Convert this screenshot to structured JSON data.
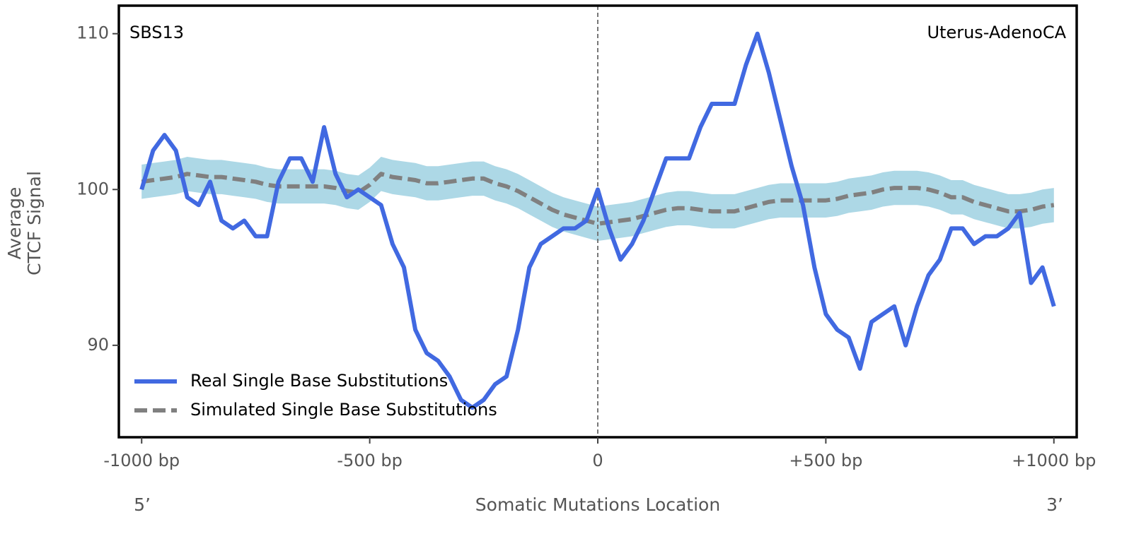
{
  "chart_data": {
    "type": "line",
    "title": "SBS13",
    "annotation": "Uterus-AdenoCA",
    "xlabel": "Somatic Mutations Location",
    "xlabel_left": "5’",
    "xlabel_right": "3’",
    "ylabel": [
      "Average",
      "CTCF Signal"
    ],
    "xlim": [
      -1050,
      1050
    ],
    "ylim": [
      84.1,
      111.8
    ],
    "xticks": [
      {
        "value": -1000,
        "label": "-1000 bp"
      },
      {
        "value": -500,
        "label": "-500 bp"
      },
      0,
      {
        "value": 500,
        "label": "+500 bp"
      },
      {
        "value": 1000,
        "label": "+1000 bp"
      }
    ],
    "yticks": [
      90,
      100,
      110
    ],
    "vline": 0,
    "legend": "lower left",
    "x": [
      -1000,
      -975,
      -950,
      -925,
      -900,
      -875,
      -850,
      -825,
      -800,
      -775,
      -750,
      -725,
      -700,
      -675,
      -650,
      -625,
      -600,
      -575,
      -550,
      -525,
      -500,
      -475,
      -450,
      -425,
      -400,
      -375,
      -350,
      -325,
      -300,
      -275,
      -250,
      -225,
      -200,
      -175,
      -150,
      -125,
      -100,
      -75,
      -50,
      -25,
      0,
      25,
      50,
      75,
      100,
      125,
      150,
      175,
      200,
      225,
      250,
      275,
      300,
      325,
      350,
      375,
      400,
      425,
      450,
      475,
      500,
      525,
      550,
      575,
      600,
      625,
      650,
      675,
      700,
      725,
      750,
      775,
      800,
      825,
      850,
      875,
      900,
      925,
      950,
      975,
      1000
    ],
    "band": {
      "color": "#add8e6",
      "upper": [
        101.6,
        101.7,
        101.8,
        101.9,
        102.1,
        102.0,
        101.9,
        101.9,
        101.8,
        101.7,
        101.6,
        101.4,
        101.3,
        101.3,
        101.3,
        101.3,
        101.3,
        101.2,
        101.0,
        100.9,
        101.4,
        102.1,
        101.9,
        101.8,
        101.7,
        101.5,
        101.5,
        101.6,
        101.7,
        101.8,
        101.8,
        101.5,
        101.3,
        101.0,
        100.6,
        100.2,
        99.8,
        99.5,
        99.3,
        99.1,
        98.9,
        99.0,
        99.1,
        99.2,
        99.4,
        99.6,
        99.8,
        99.9,
        99.9,
        99.8,
        99.7,
        99.7,
        99.7,
        99.9,
        100.1,
        100.3,
        100.4,
        100.4,
        100.4,
        100.4,
        100.4,
        100.5,
        100.7,
        100.8,
        100.9,
        101.1,
        101.2,
        101.2,
        101.2,
        101.1,
        100.9,
        100.6,
        100.6,
        100.3,
        100.1,
        99.9,
        99.7,
        99.7,
        99.8,
        100.0,
        100.1
      ],
      "lower": [
        99.4,
        99.5,
        99.6,
        99.7,
        99.9,
        99.8,
        99.7,
        99.7,
        99.6,
        99.5,
        99.4,
        99.2,
        99.1,
        99.1,
        99.1,
        99.1,
        99.1,
        99.0,
        98.8,
        98.7,
        99.2,
        99.9,
        99.7,
        99.6,
        99.5,
        99.3,
        99.3,
        99.4,
        99.5,
        99.6,
        99.6,
        99.3,
        99.1,
        98.8,
        98.4,
        98.0,
        97.6,
        97.3,
        97.1,
        96.9,
        96.7,
        96.8,
        96.9,
        97.0,
        97.2,
        97.4,
        97.6,
        97.7,
        97.7,
        97.6,
        97.5,
        97.5,
        97.5,
        97.7,
        97.9,
        98.1,
        98.2,
        98.2,
        98.2,
        98.2,
        98.2,
        98.3,
        98.5,
        98.6,
        98.7,
        98.9,
        99.0,
        99.0,
        99.0,
        98.9,
        98.7,
        98.4,
        98.4,
        98.1,
        97.9,
        97.7,
        97.5,
        97.5,
        97.6,
        97.8,
        97.9
      ]
    },
    "series": [
      {
        "name": "Real Single Base Substitutions",
        "color": "#4169e1",
        "dashed": false,
        "values": [
          100,
          102.5,
          103.5,
          102.5,
          99.5,
          99,
          100.5,
          98,
          97.5,
          98,
          97,
          97,
          100.5,
          102,
          102,
          100.5,
          104,
          101,
          99.5,
          100,
          99.5,
          99,
          96.5,
          95,
          91,
          89.5,
          89,
          88,
          86.5,
          86,
          86.5,
          87.5,
          88,
          91,
          95,
          96.5,
          97,
          97.5,
          97.5,
          98,
          100,
          97.5,
          95.5,
          96.5,
          98,
          100,
          102,
          102,
          102,
          104,
          105.5,
          105.5,
          105.5,
          108,
          110,
          107.5,
          104.5,
          101.5,
          99,
          95,
          92,
          91,
          90.5,
          88.5,
          91.5,
          92,
          92.5,
          90,
          92.5,
          94.5,
          95.5,
          97.5,
          97.5,
          96.5,
          97,
          97,
          97.5,
          98.5,
          94,
          95,
          92.5
        ]
      },
      {
        "name": "Simulated Single Base Substitutions",
        "color": "#808080",
        "dashed": true,
        "values": [
          100.5,
          100.6,
          100.7,
          100.8,
          101,
          100.9,
          100.8,
          100.8,
          100.7,
          100.6,
          100.5,
          100.3,
          100.2,
          100.2,
          100.2,
          100.2,
          100.2,
          100.1,
          99.9,
          99.8,
          100.3,
          101,
          100.8,
          100.7,
          100.6,
          100.4,
          100.4,
          100.5,
          100.6,
          100.7,
          100.7,
          100.4,
          100.2,
          99.9,
          99.5,
          99.1,
          98.7,
          98.4,
          98.2,
          98.0,
          97.8,
          97.9,
          98.0,
          98.1,
          98.3,
          98.5,
          98.7,
          98.8,
          98.8,
          98.7,
          98.6,
          98.6,
          98.6,
          98.8,
          99.0,
          99.2,
          99.3,
          99.3,
          99.3,
          99.3,
          99.3,
          99.4,
          99.6,
          99.7,
          99.8,
          100.0,
          100.1,
          100.1,
          100.1,
          100.0,
          99.8,
          99.5,
          99.5,
          99.2,
          99.0,
          98.8,
          98.6,
          98.6,
          98.7,
          98.9,
          99.0
        ]
      }
    ]
  }
}
